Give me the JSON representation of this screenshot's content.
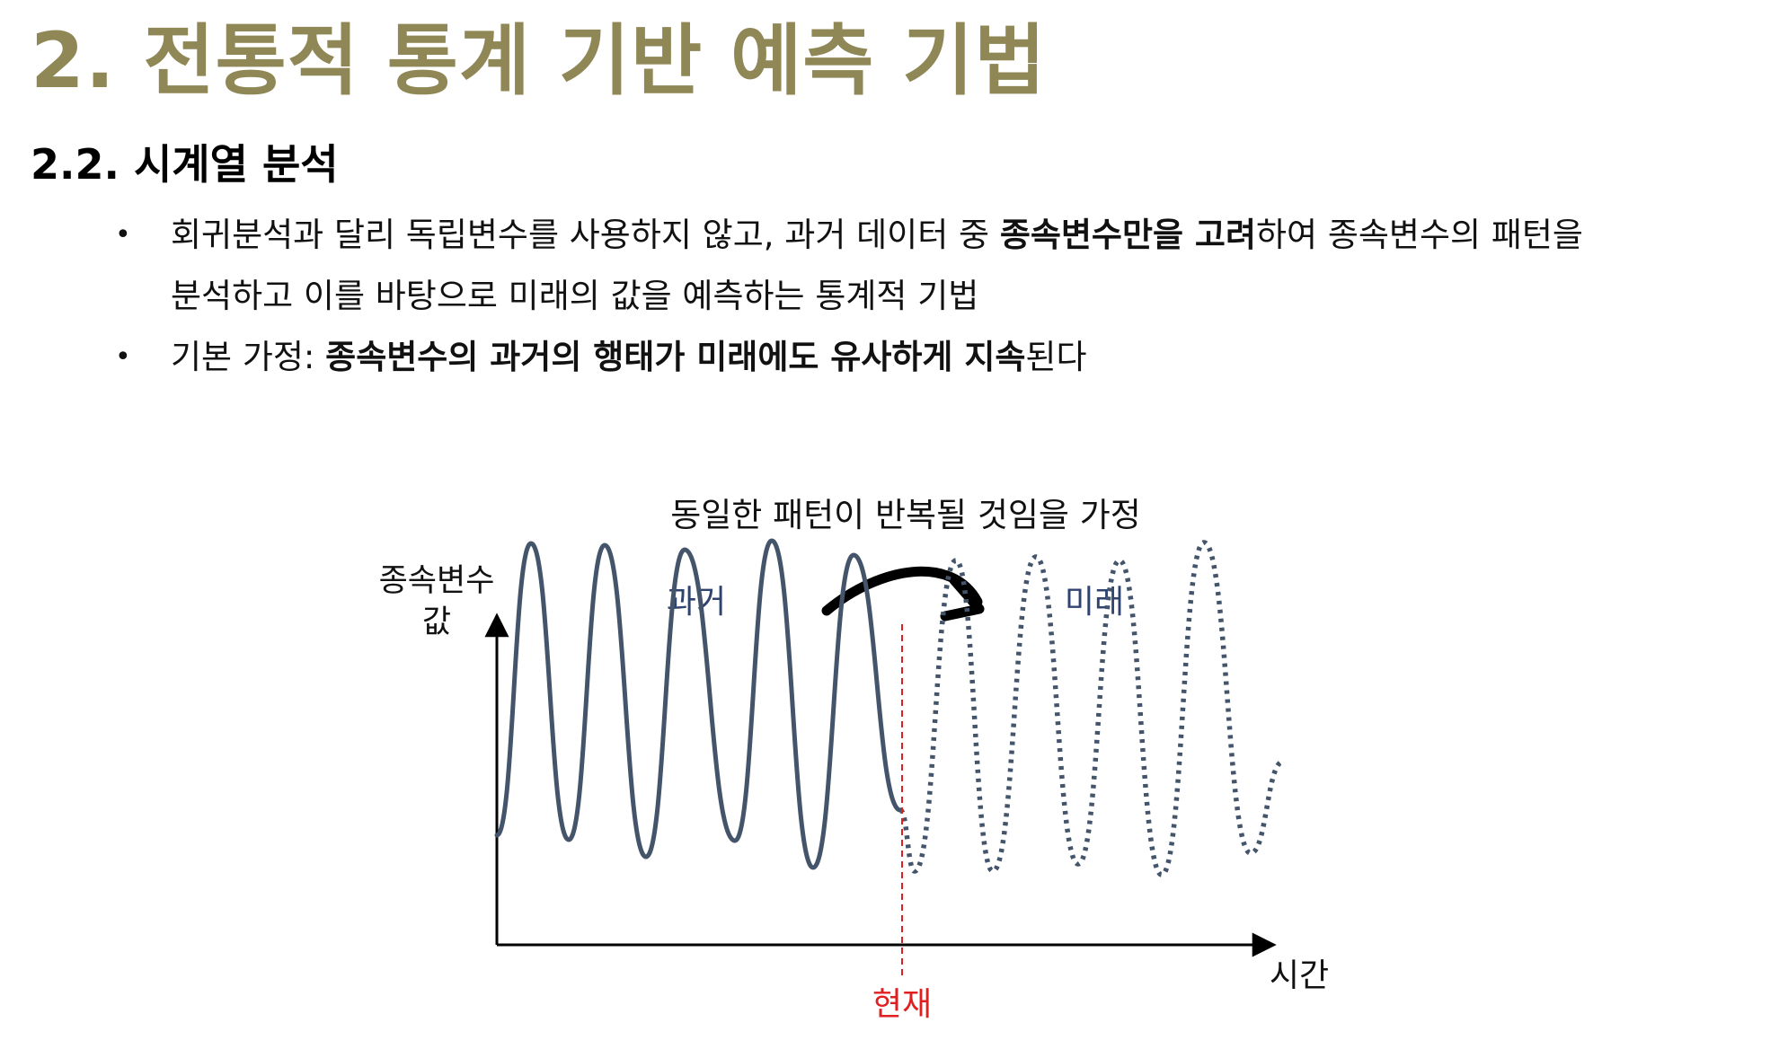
{
  "title": "2. 전통적 통계 기반 예측 기법",
  "section": "2.2. 시계열 분석",
  "bullets": [
    {
      "bullet": "•",
      "line1_pre": "회귀분석과 달리 독립변수를 사용하지 않고, 과거 데이터 중 ",
      "line1_bold": "종속변수만을 고려",
      "line1_post": "하여 종속변수의 패턴을",
      "line2": "분석하고 이를 바탕으로 미래의 값을 예측하는 통계적 기법"
    },
    {
      "bullet": "•",
      "pre": "기본 가정: ",
      "bold": "종속변수의 과거의 행태가 미래에도 유사하게 지속",
      "post": "된다"
    }
  ],
  "diagram": {
    "caption": "동일한 패턴이 반복될 것임을 가정",
    "y_label_line1": "종속변수",
    "y_label_line2": "값",
    "x_label": "시간",
    "past_label": "과거",
    "future_label": "미래",
    "now_label": "현재",
    "colors": {
      "series": "#44546a",
      "now_line": "#e02020",
      "label_blue": "#2f4370",
      "axis": "#000000"
    }
  }
}
